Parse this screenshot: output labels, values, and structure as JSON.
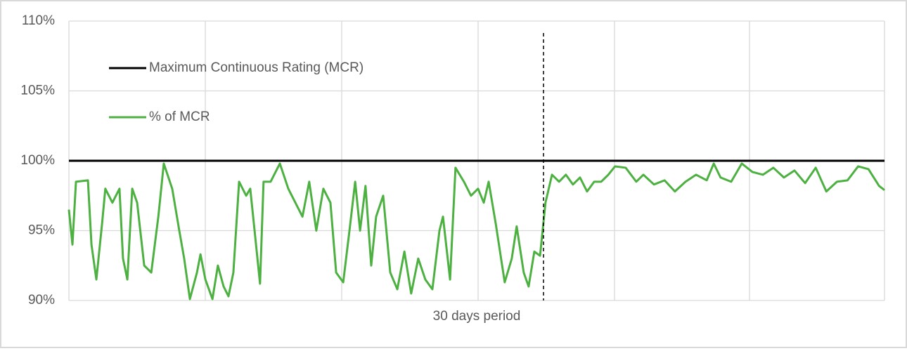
{
  "chart_data": {
    "type": "line",
    "x_label": "30 days period",
    "xlim": [
      0,
      30
    ],
    "ylim": [
      90,
      110
    ],
    "yticks": [
      {
        "value": 90,
        "label": "90%"
      },
      {
        "value": 95,
        "label": "95%"
      },
      {
        "value": 100,
        "label": "100%"
      },
      {
        "value": 105,
        "label": "105%"
      },
      {
        "value": 110,
        "label": "110%"
      }
    ],
    "grid": true,
    "legend": "upper left",
    "series": [
      {
        "name": "Maximum Continuous Rating (MCR)",
        "color": "#000000",
        "x": [
          0,
          30
        ],
        "values": [
          100,
          100
        ]
      },
      {
        "name": "% of MCR",
        "color": "#4cb140",
        "x": [
          0,
          0.13,
          0.26,
          0.7,
          0.83,
          1.01,
          1.22,
          1.34,
          1.6,
          1.86,
          1.99,
          2.15,
          2.33,
          2.51,
          2.77,
          3.03,
          3.29,
          3.49,
          3.8,
          4.06,
          4.24,
          4.45,
          4.71,
          4.84,
          5.02,
          5.28,
          5.48,
          5.69,
          5.87,
          6.05,
          6.26,
          6.52,
          6.67,
          6.83,
          7.03,
          7.16,
          7.42,
          7.76,
          8.07,
          8.33,
          8.59,
          8.84,
          9.1,
          9.36,
          9.62,
          9.83,
          10.09,
          10.32,
          10.53,
          10.71,
          10.91,
          11.12,
          11.3,
          11.56,
          11.82,
          12.08,
          12.34,
          12.59,
          12.85,
          13.11,
          13.37,
          13.63,
          13.76,
          14.02,
          14.22,
          14.53,
          14.79,
          15.05,
          15.26,
          15.44,
          15.7,
          16.03,
          16.29,
          16.47,
          16.73,
          16.91,
          17.12,
          17.33,
          17.53,
          17.77,
          18.03,
          18.28,
          18.54,
          18.8,
          19.06,
          19.32,
          19.58,
          19.84,
          20.09,
          20.48,
          20.87,
          21.13,
          21.52,
          21.91,
          22.29,
          22.68,
          23.07,
          23.46,
          23.72,
          23.97,
          24.36,
          24.75,
          25.14,
          25.53,
          25.91,
          26.3,
          26.69,
          27.08,
          27.47,
          27.86,
          28.25,
          28.64,
          29.03,
          29.41,
          29.8,
          30
        ],
        "values": [
          96.5,
          94,
          98.5,
          98.6,
          94,
          91.5,
          95.5,
          98,
          97,
          98,
          93,
          91.5,
          98,
          97,
          92.5,
          92,
          96,
          99.8,
          98,
          95,
          93,
          90.1,
          92,
          93.3,
          91.5,
          90.1,
          92.5,
          91,
          90.3,
          92,
          98.5,
          97.5,
          98,
          95,
          91.2,
          98.5,
          98.5,
          99.8,
          98,
          97,
          96,
          98.5,
          95,
          98,
          97,
          92,
          91.3,
          95,
          98.5,
          95,
          98.2,
          92.5,
          96,
          97.5,
          92,
          90.8,
          93.5,
          90.5,
          93,
          91.5,
          90.8,
          95,
          96,
          91.5,
          99.5,
          98.5,
          97.5,
          98,
          97,
          98.5,
          95.5,
          91.3,
          93,
          95.3,
          92,
          91,
          93.5,
          93.2,
          97,
          99,
          98.5,
          99,
          98.3,
          98.8,
          97.8,
          98.5,
          98.5,
          99,
          99.6,
          99.5,
          98.5,
          99,
          98.3,
          98.6,
          97.8,
          98.5,
          99,
          98.6,
          99.8,
          98.8,
          98.5,
          99.8,
          99.2,
          99,
          99.5,
          98.8,
          99.3,
          98.4,
          99.5,
          97.8,
          98.5,
          98.6,
          99.6,
          99.4,
          98.2,
          97.9
        ]
      }
    ]
  }
}
